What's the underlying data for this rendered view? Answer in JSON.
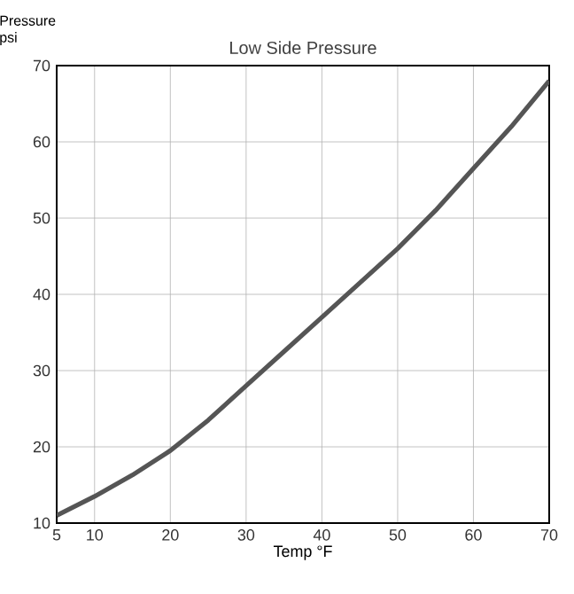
{
  "chart_data": {
    "type": "line",
    "title": "Low Side Pressure",
    "xlabel": "Temp °F",
    "ylabel": "Pressure psi",
    "x": [
      5,
      10,
      15,
      20,
      25,
      30,
      35,
      40,
      45,
      50,
      55,
      60,
      65,
      70
    ],
    "series": [
      {
        "color": "#555555",
        "values": [
          11,
          13.5,
          16.3,
          19.5,
          23.5,
          28,
          32.5,
          37,
          41.5,
          46,
          51,
          56.5,
          62,
          68
        ]
      }
    ],
    "xlim": [
      5,
      70
    ],
    "ylim": [
      10,
      70
    ],
    "xticks": [
      5,
      10,
      20,
      30,
      40,
      50,
      60,
      70
    ],
    "yticks": [
      10,
      20,
      30,
      40,
      50,
      60,
      70
    ],
    "grid": true,
    "marker": "none",
    "line_style": "solid"
  }
}
